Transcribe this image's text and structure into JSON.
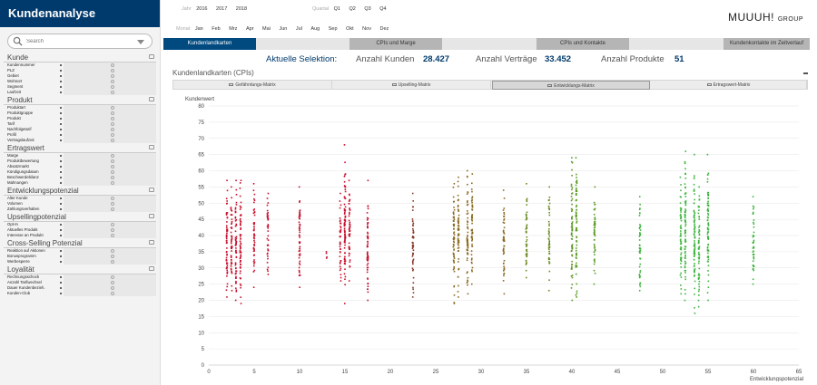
{
  "sidebar": {
    "title": "Kundenanalyse",
    "search_placeholder": "Search",
    "groups": [
      {
        "title": "Kunde",
        "fields": [
          "Kundennummer",
          "PLZ",
          "Gebiet",
          "Wohnort",
          "Segment",
          "Laufzeit"
        ]
      },
      {
        "title": "Produkt",
        "fields": [
          "Produktart",
          "Produktgruppe",
          "Produkt",
          "Tarif",
          "Nachfolgetarif",
          "Profil",
          "Vertragslaufzeit"
        ]
      },
      {
        "title": "Ertragswert",
        "fields": [
          "Marge",
          "Produktbewertung",
          "Absatzmarkt",
          "Kündigungsdatum",
          "Beschwerdebilanz",
          "Mahnungen"
        ]
      },
      {
        "title": "Entwicklungspotenzial",
        "fields": [
          "Alter Kunde",
          "Volumen",
          "Zahlungsverhalten"
        ]
      },
      {
        "title": "Upsellingpotenzial",
        "fields": [
          "Opt-In",
          "Aktuelles Produkt",
          "Interesse an Produkt"
        ]
      },
      {
        "title": "Cross-Selling Potenzial",
        "fields": [
          "Reaktion auf Aktionen",
          "Bonusprogramm",
          "Werbesperre"
        ]
      },
      {
        "title": "Loyalität",
        "fields": [
          "Rechnungsschock",
          "Anzahl Tarifwechsel",
          "Dauer Kundenbezieh.",
          "Kunden-Club"
        ]
      }
    ]
  },
  "filters": {
    "jahr_label": "Jahr",
    "jahre": [
      "2016",
      "2017",
      "2018"
    ],
    "quartal_label": "Quartal",
    "quartale": [
      "Q1",
      "Q2",
      "Q3",
      "Q4"
    ],
    "monat_label": "Monat",
    "monate": [
      "Jan",
      "Feb",
      "Mrz",
      "Apr",
      "Mai",
      "Jun",
      "Jul",
      "Aug",
      "Sep",
      "Okt",
      "Nov",
      "Dez"
    ]
  },
  "logo": {
    "main": "MUUUH!",
    "sub": "GROUP"
  },
  "tabs": [
    "Kundenlandkarten",
    "CPIs und Marge",
    "CPIs und Kontakte",
    "Kundenkontakte im Zeitverlauf"
  ],
  "stats": {
    "heading": "Aktuelle Selektion:",
    "kunden_label": "Anzahl Kunden",
    "kunden_value": "28.427",
    "vertraege_label": "Anzahl Verträge",
    "vertraege_value": "33.452",
    "produkte_label": "Anzahl Produkte",
    "produkte_value": "51"
  },
  "panel": {
    "title": "Kundenlandkarten (CPIs)",
    "subtabs": [
      "Gefährdungs-Matrix",
      "Upselling-Matrix",
      "Entwicklungs-Matrix",
      "Ertragswert-Matrix"
    ],
    "active_subtab": "Entwicklungs-Matrix"
  },
  "chart_data": {
    "type": "scatter",
    "ylabel": "Kundenwert",
    "xlabel": "Entwicklungspotenzial",
    "xlim": [
      0,
      65
    ],
    "ylim": [
      0,
      80
    ],
    "xticks": [
      0,
      5,
      10,
      15,
      20,
      25,
      30,
      35,
      40,
      45,
      50,
      55,
      60,
      65
    ],
    "yticks": [
      0,
      5,
      10,
      15,
      20,
      25,
      30,
      35,
      40,
      45,
      50,
      55,
      60,
      65,
      70,
      75,
      80
    ],
    "grid": true,
    "colors": {
      "low": "#c8102e",
      "mid": "#8a6a20",
      "high": "#3cb43c"
    },
    "columns": [
      {
        "x": 2,
        "ymin": 21,
        "ymax": 57,
        "color": "#c8102e"
      },
      {
        "x": 2.5,
        "ymin": 23,
        "ymax": 55,
        "color": "#c8102e"
      },
      {
        "x": 3,
        "ymin": 20,
        "ymax": 57,
        "color": "#c8102e"
      },
      {
        "x": 3.5,
        "ymin": 19,
        "ymax": 57,
        "color": "#c8102e"
      },
      {
        "x": 5,
        "ymin": 24,
        "ymax": 56,
        "color": "#c8102e"
      },
      {
        "x": 6.5,
        "ymin": 28,
        "ymax": 53,
        "color": "#c8102e"
      },
      {
        "x": 10,
        "ymin": 24,
        "ymax": 55,
        "color": "#c8102e"
      },
      {
        "x": 13,
        "ymin": 33,
        "ymax": 35,
        "color": "#c8102e"
      },
      {
        "x": 14.5,
        "ymin": 26,
        "ymax": 53,
        "color": "#c8102e"
      },
      {
        "x": 15,
        "ymin": 19,
        "ymax": 68,
        "color": "#c8102e"
      },
      {
        "x": 15.5,
        "ymin": 26,
        "ymax": 57,
        "color": "#c8102e"
      },
      {
        "x": 17.5,
        "ymin": 20,
        "ymax": 57,
        "color": "#c8102e"
      },
      {
        "x": 22.5,
        "ymin": 21,
        "ymax": 53,
        "color": "#8a3a2a"
      },
      {
        "x": 27,
        "ymin": 19,
        "ymax": 56,
        "color": "#8a6a20"
      },
      {
        "x": 27.5,
        "ymin": 21,
        "ymax": 58,
        "color": "#8a6a20"
      },
      {
        "x": 28.5,
        "ymin": 22,
        "ymax": 60,
        "color": "#8a6a20"
      },
      {
        "x": 29,
        "ymin": 25,
        "ymax": 59,
        "color": "#8a6a20"
      },
      {
        "x": 32.5,
        "ymin": 22,
        "ymax": 54,
        "color": "#8a6a20"
      },
      {
        "x": 35,
        "ymin": 27,
        "ymax": 56,
        "color": "#6a8a20"
      },
      {
        "x": 37.5,
        "ymin": 23,
        "ymax": 55,
        "color": "#6a8a20"
      },
      {
        "x": 40,
        "ymin": 20,
        "ymax": 64,
        "color": "#5a9a20"
      },
      {
        "x": 40.5,
        "ymin": 21,
        "ymax": 64,
        "color": "#5a9a20"
      },
      {
        "x": 42.5,
        "ymin": 25,
        "ymax": 55,
        "color": "#5a9a20"
      },
      {
        "x": 47.5,
        "ymin": 23,
        "ymax": 52,
        "color": "#3cb43c"
      },
      {
        "x": 52,
        "ymin": 22,
        "ymax": 58,
        "color": "#3cb43c"
      },
      {
        "x": 52.5,
        "ymin": 20,
        "ymax": 66,
        "color": "#3cb43c"
      },
      {
        "x": 53.5,
        "ymin": 16,
        "ymax": 65,
        "color": "#3cb43c"
      },
      {
        "x": 54,
        "ymin": 18,
        "ymax": 55,
        "color": "#3cb43c"
      },
      {
        "x": 55,
        "ymin": 20,
        "ymax": 65,
        "color": "#3cb43c"
      },
      {
        "x": 60,
        "ymin": 25,
        "ymax": 52,
        "color": "#3cb43c"
      }
    ]
  }
}
